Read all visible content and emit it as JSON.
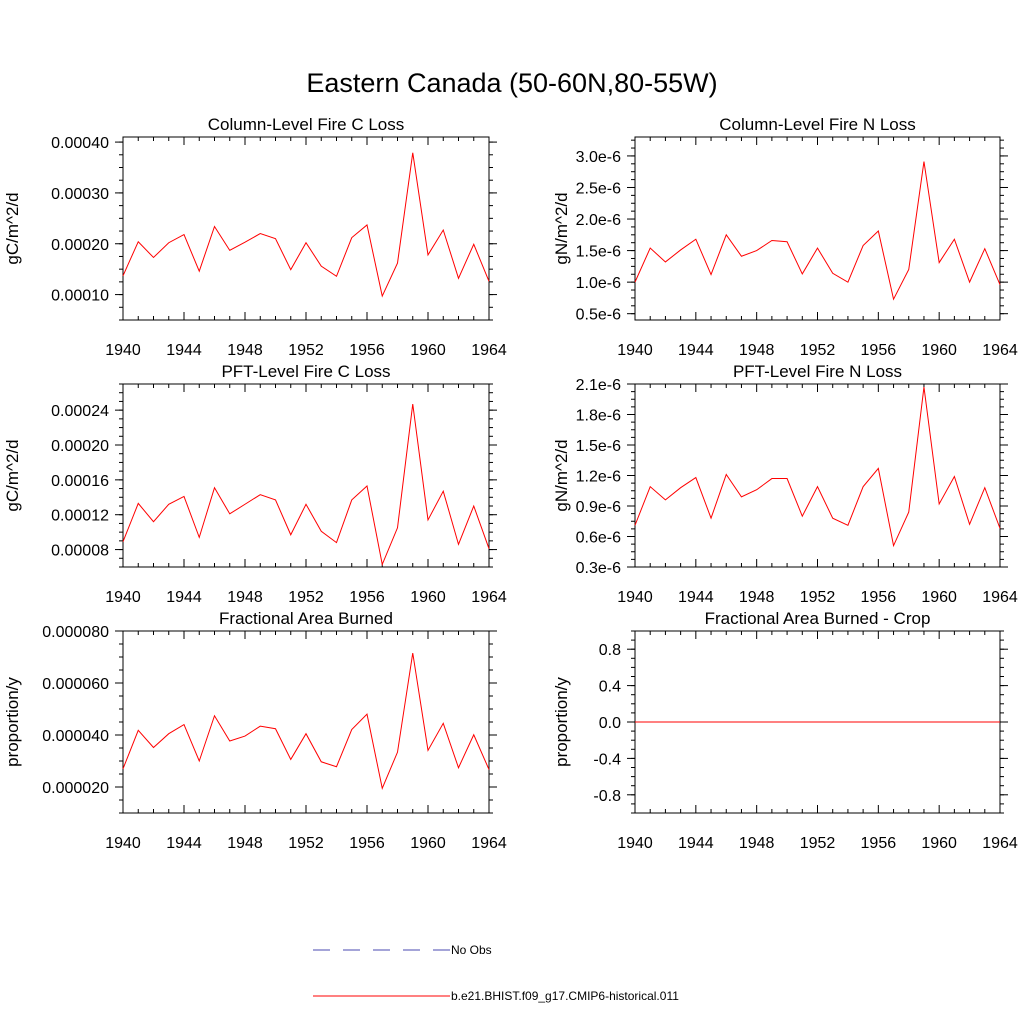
{
  "figure": {
    "title": "Eastern Canada (50-60N,80-55W)"
  },
  "legend": {
    "entries": [
      {
        "label": "No Obs",
        "style": "dashed",
        "color": "#4a4ab0"
      },
      {
        "label": "b.e21.BHIST.f09_g17.CMIP6-historical.011",
        "style": "solid",
        "color": "#ff0000"
      }
    ]
  },
  "chart_data": [
    {
      "type": "line",
      "title": "Column-Level Fire C Loss",
      "ylabel": "gC/m^2/d",
      "xlim": [
        1940,
        1964
      ],
      "ylim": [
        5e-05,
        0.00041
      ],
      "x_ticks": [
        "1940",
        "1944",
        "1948",
        "1952",
        "1956",
        "1960",
        "1964"
      ],
      "y_ticks": [
        {
          "v": 0.0001,
          "label": "0.00010"
        },
        {
          "v": 0.0002,
          "label": "0.00020"
        },
        {
          "v": 0.0003,
          "label": "0.00030"
        },
        {
          "v": 0.0004,
          "label": "0.00040"
        }
      ],
      "x": [
        1940,
        1941,
        1942,
        1943,
        1944,
        1945,
        1946,
        1947,
        1948,
        1949,
        1950,
        1951,
        1952,
        1953,
        1954,
        1955,
        1956,
        1957,
        1958,
        1959,
        1960,
        1961,
        1962,
        1963,
        1964
      ],
      "series": [
        {
          "values": [
            0.000137,
            0.000204,
            0.000173,
            0.000202,
            0.000218,
            0.000146,
            0.000234,
            0.000187,
            0.000203,
            0.00022,
            0.00021,
            0.000149,
            0.000202,
            0.000156,
            0.000136,
            0.000212,
            0.000237,
            9.7e-05,
            0.000162,
            0.000379,
            0.000178,
            0.000227,
            0.000132,
            0.000199,
            0.000126
          ],
          "color": "#ff0000"
        }
      ],
      "grid": false
    },
    {
      "type": "line",
      "title": "Column-Level Fire N Loss",
      "ylabel": "gN/m^2/d",
      "xlim": [
        1940,
        1964
      ],
      "ylim": [
        4e-07,
        3.3e-06
      ],
      "x_ticks": [
        "1940",
        "1944",
        "1948",
        "1952",
        "1956",
        "1960",
        "1964"
      ],
      "y_ticks": [
        {
          "v": 5e-07,
          "label": "0.5e-6"
        },
        {
          "v": 1e-06,
          "label": "1.0e-6"
        },
        {
          "v": 1.5e-06,
          "label": "1.5e-6"
        },
        {
          "v": 2e-06,
          "label": "2.0e-6"
        },
        {
          "v": 2.5e-06,
          "label": "2.5e-6"
        },
        {
          "v": 3e-06,
          "label": "3.0e-6"
        }
      ],
      "x": [
        1940,
        1941,
        1942,
        1943,
        1944,
        1945,
        1946,
        1947,
        1948,
        1949,
        1950,
        1951,
        1952,
        1953,
        1954,
        1955,
        1956,
        1957,
        1958,
        1959,
        1960,
        1961,
        1962,
        1963,
        1964
      ],
      "series": [
        {
          "values": [
            1e-06,
            1.54e-06,
            1.32e-06,
            1.51e-06,
            1.68e-06,
            1.12e-06,
            1.75e-06,
            1.41e-06,
            1.5e-06,
            1.66e-06,
            1.64e-06,
            1.13e-06,
            1.54e-06,
            1.14e-06,
            1e-06,
            1.58e-06,
            1.81e-06,
            7.3e-07,
            1.2e-06,
            2.91e-06,
            1.31e-06,
            1.68e-06,
            1e-06,
            1.53e-06,
            9.6e-07
          ],
          "color": "#ff0000"
        }
      ],
      "grid": false
    },
    {
      "type": "line",
      "title": "PFT-Level Fire C Loss",
      "ylabel": "gC/m^2/d",
      "xlim": [
        1940,
        1964
      ],
      "ylim": [
        6e-05,
        0.00027
      ],
      "x_ticks": [
        "1940",
        "1944",
        "1948",
        "1952",
        "1956",
        "1960",
        "1964"
      ],
      "y_ticks": [
        {
          "v": 8e-05,
          "label": "0.00008"
        },
        {
          "v": 0.00012,
          "label": "0.00012"
        },
        {
          "v": 0.00016,
          "label": "0.00016"
        },
        {
          "v": 0.0002,
          "label": "0.00020"
        },
        {
          "v": 0.00024,
          "label": "0.00024"
        }
      ],
      "x": [
        1940,
        1941,
        1942,
        1943,
        1944,
        1945,
        1946,
        1947,
        1948,
        1949,
        1950,
        1951,
        1952,
        1953,
        1954,
        1955,
        1956,
        1957,
        1958,
        1959,
        1960,
        1961,
        1962,
        1963,
        1964
      ],
      "series": [
        {
          "values": [
            8.9e-05,
            0.000133,
            0.000112,
            0.000132,
            0.000141,
            9.4e-05,
            0.000151,
            0.000121,
            0.000132,
            0.000143,
            0.000137,
            9.7e-05,
            0.000132,
            0.000101,
            8.8e-05,
            0.000137,
            0.000153,
            6.3e-05,
            0.000105,
            0.000247,
            0.000114,
            0.000147,
            8.6e-05,
            0.00013,
            8.1e-05
          ],
          "color": "#ff0000"
        }
      ],
      "grid": false
    },
    {
      "type": "line",
      "title": "PFT-Level Fire N Loss",
      "ylabel": "gN/m^2/d",
      "xlim": [
        1940,
        1964
      ],
      "ylim": [
        3e-07,
        2.1e-06
      ],
      "x_ticks": [
        "1940",
        "1944",
        "1948",
        "1952",
        "1956",
        "1960",
        "1964"
      ],
      "y_ticks": [
        {
          "v": 3e-07,
          "label": "0.3e-6"
        },
        {
          "v": 6e-07,
          "label": "0.6e-6"
        },
        {
          "v": 9e-07,
          "label": "0.9e-6"
        },
        {
          "v": 1.2e-06,
          "label": "1.2e-6"
        },
        {
          "v": 1.5e-06,
          "label": "1.5e-6"
        },
        {
          "v": 1.8e-06,
          "label": "1.8e-6"
        },
        {
          "v": 2.1e-06,
          "label": "2.1e-6"
        }
      ],
      "x": [
        1940,
        1941,
        1942,
        1943,
        1944,
        1945,
        1946,
        1947,
        1948,
        1949,
        1950,
        1951,
        1952,
        1953,
        1954,
        1955,
        1956,
        1957,
        1958,
        1959,
        1960,
        1961,
        1962,
        1963,
        1964
      ],
      "series": [
        {
          "values": [
            7.1e-07,
            1.09e-06,
            9.6e-07,
            1.08e-06,
            1.18e-06,
            7.8e-07,
            1.21e-06,
            9.9e-07,
            1.06e-06,
            1.17e-06,
            1.17e-06,
            8e-07,
            1.09e-06,
            7.8e-07,
            7.1e-07,
            1.09e-06,
            1.27e-06,
            5.1e-07,
            8.4e-07,
            2.07e-06,
            9.2e-07,
            1.19e-06,
            7.2e-07,
            1.08e-06,
            6.8e-07
          ],
          "color": "#ff0000"
        }
      ],
      "grid": false
    },
    {
      "type": "line",
      "title": "Fractional Area Burned",
      "ylabel": "proportion/y",
      "xlim": [
        1940,
        1964
      ],
      "ylim": [
        1e-05,
        8e-05
      ],
      "x_ticks": [
        "1940",
        "1944",
        "1948",
        "1952",
        "1956",
        "1960",
        "1964"
      ],
      "y_ticks": [
        {
          "v": 2e-05,
          "label": "0.000020"
        },
        {
          "v": 4e-05,
          "label": "0.000040"
        },
        {
          "v": 6e-05,
          "label": "0.000060"
        },
        {
          "v": 8e-05,
          "label": "0.000080"
        }
      ],
      "x": [
        1940,
        1941,
        1942,
        1943,
        1944,
        1945,
        1946,
        1947,
        1948,
        1949,
        1950,
        1951,
        1952,
        1953,
        1954,
        1955,
        1956,
        1957,
        1958,
        1959,
        1960,
        1961,
        1962,
        1963,
        1964
      ],
      "series": [
        {
          "values": [
            2.7e-05,
            4.18e-05,
            3.52e-05,
            4.05e-05,
            4.4e-05,
            3e-05,
            4.74e-05,
            3.77e-05,
            3.96e-05,
            4.34e-05,
            4.24e-05,
            3.06e-05,
            4.05e-05,
            2.97e-05,
            2.78e-05,
            4.21e-05,
            4.8e-05,
            1.95e-05,
            3.34e-05,
            7.15e-05,
            3.41e-05,
            4.45e-05,
            2.74e-05,
            4.01e-05,
            2.67e-05
          ],
          "color": "#ff0000"
        }
      ],
      "grid": false
    },
    {
      "type": "line",
      "title": "Fractional Area Burned - Crop",
      "ylabel": "proportion/y",
      "xlim": [
        1940,
        1964
      ],
      "ylim": [
        -1,
        1
      ],
      "x_ticks": [
        "1940",
        "1944",
        "1948",
        "1952",
        "1956",
        "1960",
        "1964"
      ],
      "y_ticks": [
        {
          "v": -0.8,
          "label": "-0.8"
        },
        {
          "v": -0.4,
          "label": "-0.4"
        },
        {
          "v": 0,
          "label": "0.0"
        },
        {
          "v": 0.4,
          "label": "0.4"
        },
        {
          "v": 0.8,
          "label": "0.8"
        }
      ],
      "x": [
        1940,
        1941,
        1942,
        1943,
        1944,
        1945,
        1946,
        1947,
        1948,
        1949,
        1950,
        1951,
        1952,
        1953,
        1954,
        1955,
        1956,
        1957,
        1958,
        1959,
        1960,
        1961,
        1962,
        1963,
        1964
      ],
      "series": [
        {
          "values": [
            0,
            0,
            0,
            0,
            0,
            0,
            0,
            0,
            0,
            0,
            0,
            0,
            0,
            0,
            0,
            0,
            0,
            0,
            0,
            0,
            0,
            0,
            0,
            0,
            0
          ],
          "color": "#ff0000"
        }
      ],
      "grid": false
    }
  ]
}
